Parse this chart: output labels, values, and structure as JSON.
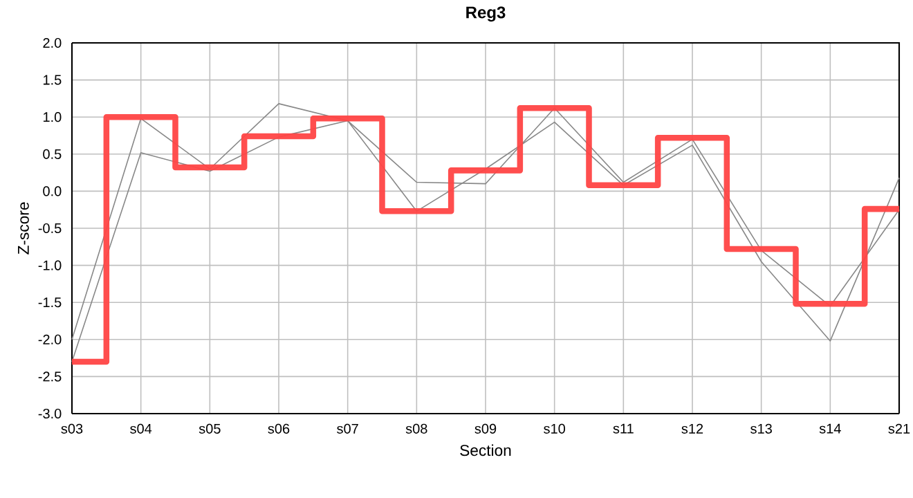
{
  "chart_data": {
    "type": "line",
    "title": "Reg3",
    "xlabel": "Section",
    "ylabel": "Z-score",
    "categories": [
      "s03",
      "s04",
      "s05",
      "s06",
      "s07",
      "s08",
      "s09",
      "s10",
      "s11",
      "s12",
      "s13",
      "s14",
      "s21"
    ],
    "series": [
      {
        "color": "#888888",
        "values": [
          -2.0,
          0.98,
          0.3,
          1.18,
          0.95,
          0.12,
          0.1,
          1.12,
          0.12,
          0.7,
          -0.8,
          -1.55,
          -0.25
        ]
      },
      {
        "color": "#888888",
        "values": [
          -2.3,
          0.52,
          0.27,
          0.73,
          0.95,
          -0.27,
          0.3,
          0.93,
          0.08,
          0.62,
          -0.95,
          -2.02,
          0.18
        ]
      },
      {
        "type": "step",
        "color": "#ff4444",
        "values": [
          -2.3,
          1.0,
          0.32,
          0.74,
          0.98,
          -0.27,
          0.28,
          1.12,
          0.08,
          0.72,
          -0.78,
          -1.52,
          -0.24
        ]
      }
    ],
    "ylim": [
      -3.0,
      2.0
    ],
    "yticks": [
      {
        "value": -3.0,
        "label": "-3.0"
      },
      {
        "value": -2.5,
        "label": "-2.5"
      },
      {
        "value": -2.0,
        "label": "-2.0"
      },
      {
        "value": -1.5,
        "label": "-1.5"
      },
      {
        "value": -1.0,
        "label": "-1.0"
      },
      {
        "value": -0.5,
        "label": "-0.5"
      },
      {
        "value": 0.0,
        "label": "0.0"
      },
      {
        "value": 0.5,
        "label": "0.5"
      },
      {
        "value": 1.0,
        "label": "1.0"
      },
      {
        "value": 1.5,
        "label": "1.5"
      },
      {
        "value": 2.0,
        "label": "2.0"
      }
    ],
    "grid": true
  }
}
